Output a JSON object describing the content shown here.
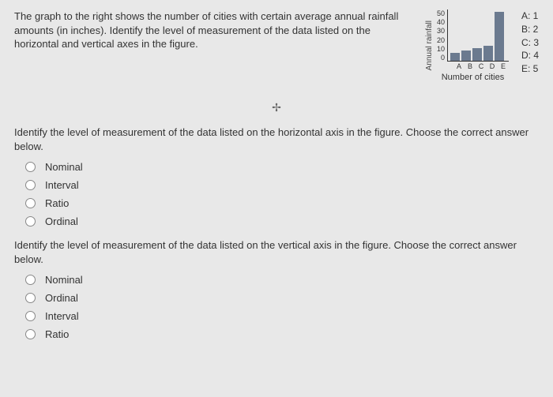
{
  "intro": "The graph to the right shows the number of cities with certain average annual rainfall amounts (in inches). Identify the level of measurement of the data listed on the horizontal and vertical axes in the figure.",
  "chart": {
    "type": "bar",
    "ylabel": "Annual rainfall",
    "xlabel": "Number of cities",
    "ylim": [
      0,
      50
    ],
    "ytick_step": 10,
    "yticks": [
      "50",
      "40",
      "30",
      "20",
      "10",
      "0"
    ],
    "categories": [
      "A",
      "B",
      "C",
      "D",
      "E"
    ],
    "values": [
      8,
      10,
      12,
      15,
      48
    ],
    "bar_color": "#6b7a8f",
    "axis_color": "#333333",
    "background_color": "#e8e8e8",
    "tick_fontsize": 9,
    "label_fontsize": 11
  },
  "legend": {
    "items": [
      "A: 1",
      "B: 2",
      "C: 3",
      "D: 4",
      "E: 5"
    ]
  },
  "divider_glyph": "✢",
  "q1": {
    "prompt": "Identify the level of measurement of the data listed on the horizontal axis in the figure. Choose the correct answer below.",
    "options": [
      "Nominal",
      "Interval",
      "Ratio",
      "Ordinal"
    ]
  },
  "q2": {
    "prompt": "Identify the level of measurement of the data listed on the vertical axis in the figure. Choose the correct answer below.",
    "options": [
      "Nominal",
      "Ordinal",
      "Interval",
      "Ratio"
    ]
  }
}
